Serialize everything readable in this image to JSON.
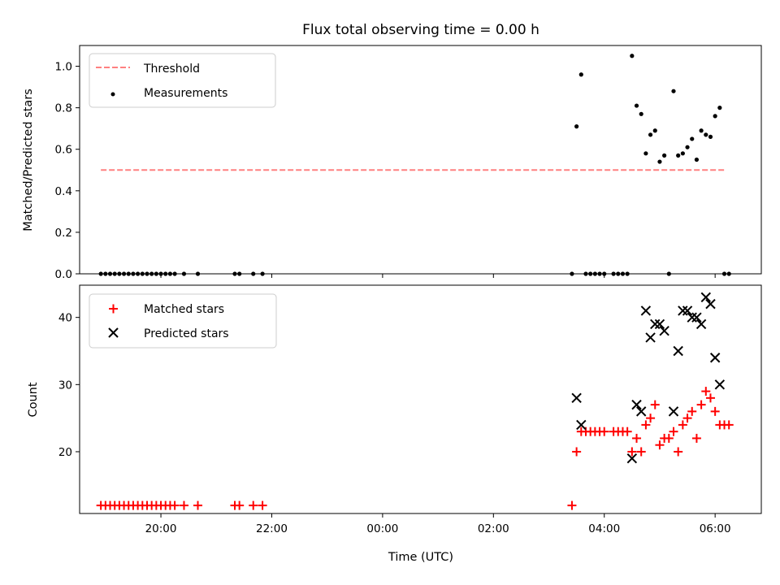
{
  "chart_data": [
    {
      "type": "scatter",
      "title": "Flux total observing time = 0.00 h",
      "xlabel": "",
      "ylabel": "Matched/Predicted stars",
      "ylim": [
        0,
        1.1
      ],
      "yticks": [
        0.0,
        0.2,
        0.4,
        0.6,
        0.8,
        1.0
      ],
      "ytick_labels": [
        "0.0",
        "0.2",
        "0.4",
        "0.6",
        "0.8",
        "1.0"
      ],
      "grid": false,
      "legend_position": "top-left",
      "threshold": {
        "name": "Threshold",
        "value": 0.5,
        "x_start": "18:55",
        "x_end": "06:10",
        "color": "#ff8080"
      },
      "series": [
        {
          "name": "Measurements",
          "color": "#000000",
          "x": [
            "18:55",
            "19:00",
            "19:05",
            "19:10",
            "19:15",
            "19:20",
            "19:25",
            "19:30",
            "19:35",
            "19:40",
            "19:45",
            "19:50",
            "19:55",
            "20:00",
            "20:05",
            "20:10",
            "20:15",
            "20:25",
            "20:40",
            "21:20",
            "21:25",
            "21:40",
            "21:50",
            "03:25",
            "03:30",
            "03:35",
            "03:40",
            "03:45",
            "03:50",
            "03:55",
            "04:00",
            "04:10",
            "04:15",
            "04:20",
            "04:25",
            "04:30",
            "04:35",
            "04:40",
            "04:45",
            "04:50",
            "04:55",
            "05:00",
            "05:05",
            "05:10",
            "05:15",
            "05:20",
            "05:25",
            "05:30",
            "05:35",
            "05:40",
            "05:45",
            "05:50",
            "05:55",
            "06:00",
            "06:05",
            "06:10",
            "06:15"
          ],
          "y": [
            0,
            0,
            0,
            0,
            0,
            0,
            0,
            0,
            0,
            0,
            0,
            0,
            0,
            0,
            0,
            0,
            0,
            0,
            0,
            0,
            0,
            0,
            0,
            0,
            0.71,
            0.96,
            0,
            0,
            0,
            0,
            0,
            0,
            0,
            0,
            0,
            1.05,
            0.81,
            0.77,
            0.58,
            0.67,
            0.69,
            0.54,
            0.57,
            0,
            0.88,
            0.57,
            0.58,
            0.61,
            0.65,
            0.55,
            0.69,
            0.67,
            0.66,
            0.76,
            0.8,
            0,
            0
          ]
        }
      ]
    },
    {
      "type": "scatter",
      "title": "",
      "xlabel": "Time (UTC)",
      "ylabel": "Count",
      "ylim": [
        10.8,
        44.8
      ],
      "yticks": [
        20,
        30,
        40
      ],
      "ytick_labels": [
        "20",
        "30",
        "40"
      ],
      "xlim": [
        "18:32",
        "06:50"
      ],
      "xticks": [
        "20:00",
        "22:00",
        "00:00",
        "02:00",
        "04:00",
        "06:00"
      ],
      "xtick_labels": [
        "20:00",
        "22:00",
        "00:00",
        "02:00",
        "04:00",
        "06:00"
      ],
      "grid": false,
      "legend_position": "top-left",
      "series": [
        {
          "name": "Matched stars",
          "color": "#ff0000",
          "marker": "+",
          "x": [
            "18:55",
            "19:00",
            "19:05",
            "19:10",
            "19:15",
            "19:20",
            "19:25",
            "19:30",
            "19:35",
            "19:40",
            "19:45",
            "19:50",
            "19:55",
            "20:00",
            "20:05",
            "20:10",
            "20:15",
            "20:25",
            "20:40",
            "21:20",
            "21:25",
            "21:40",
            "21:50",
            "03:25",
            "03:30",
            "03:35",
            "03:40",
            "03:45",
            "03:50",
            "03:55",
            "04:00",
            "04:10",
            "04:15",
            "04:20",
            "04:25",
            "04:30",
            "04:35",
            "04:40",
            "04:45",
            "04:50",
            "04:55",
            "05:00",
            "05:05",
            "05:10",
            "05:15",
            "05:20",
            "05:25",
            "05:30",
            "05:35",
            "05:40",
            "05:45",
            "05:50",
            "05:55",
            "06:00",
            "06:05",
            "06:10",
            "06:15"
          ],
          "y": [
            12,
            12,
            12,
            12,
            12,
            12,
            12,
            12,
            12,
            12,
            12,
            12,
            12,
            12,
            12,
            12,
            12,
            12,
            12,
            12,
            12,
            12,
            12,
            12,
            20,
            23,
            23,
            23,
            23,
            23,
            23,
            23,
            23,
            23,
            23,
            20,
            22,
            20,
            24,
            25,
            27,
            21,
            22,
            22,
            23,
            20,
            24,
            25,
            26,
            22,
            27,
            29,
            28,
            26,
            24,
            24,
            24
          ]
        },
        {
          "name": "Predicted stars",
          "color": "#000000",
          "marker": "x",
          "x": [
            "03:30",
            "03:35",
            "04:30",
            "04:35",
            "04:40",
            "04:45",
            "04:50",
            "04:55",
            "05:00",
            "05:05",
            "05:15",
            "05:20",
            "05:25",
            "05:30",
            "05:35",
            "05:40",
            "05:45",
            "05:50",
            "05:55",
            "06:00",
            "06:05"
          ],
          "y": [
            28,
            24,
            19,
            27,
            26,
            41,
            37,
            39,
            39,
            38,
            26,
            35,
            41,
            41,
            40,
            40,
            39,
            43,
            42,
            34,
            30
          ]
        }
      ]
    }
  ]
}
